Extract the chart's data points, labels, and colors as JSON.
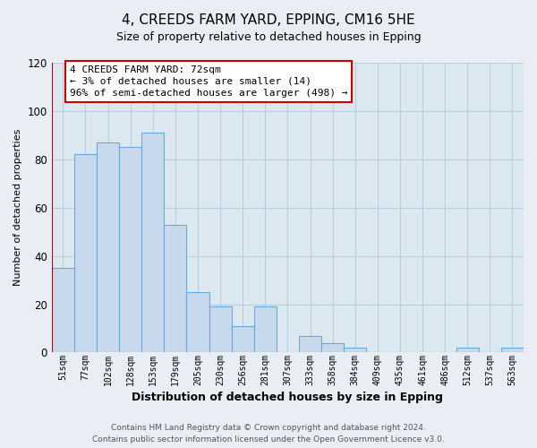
{
  "title": "4, CREEDS FARM YARD, EPPING, CM16 5HE",
  "subtitle": "Size of property relative to detached houses in Epping",
  "xlabel": "Distribution of detached houses by size in Epping",
  "ylabel": "Number of detached properties",
  "bar_labels": [
    "51sqm",
    "77sqm",
    "102sqm",
    "128sqm",
    "153sqm",
    "179sqm",
    "205sqm",
    "230sqm",
    "256sqm",
    "281sqm",
    "307sqm",
    "333sqm",
    "358sqm",
    "384sqm",
    "409sqm",
    "435sqm",
    "461sqm",
    "486sqm",
    "512sqm",
    "537sqm",
    "563sqm"
  ],
  "bar_values": [
    35,
    82,
    87,
    85,
    91,
    53,
    25,
    19,
    11,
    19,
    0,
    7,
    4,
    2,
    0,
    0,
    0,
    0,
    2,
    0,
    2
  ],
  "bar_color": "#c8d8ed",
  "bar_edge_color": "#6aaad4",
  "highlight_line_color": "#bb0000",
  "annotation_text": "4 CREEDS FARM YARD: 72sqm\n← 3% of detached houses are smaller (14)\n96% of semi-detached houses are larger (498) →",
  "annotation_box_edge": "#cc0000",
  "annotation_box_face": "#ffffff",
  "ylim": [
    0,
    120
  ],
  "yticks": [
    0,
    20,
    40,
    60,
    80,
    100,
    120
  ],
  "footer_line1": "Contains HM Land Registry data © Crown copyright and database right 2024.",
  "footer_line2": "Contains public sector information licensed under the Open Government Licence v3.0.",
  "bg_color": "#e8eef4",
  "plot_bg_color": "#dce8f0",
  "grid_color": "#b8cede"
}
